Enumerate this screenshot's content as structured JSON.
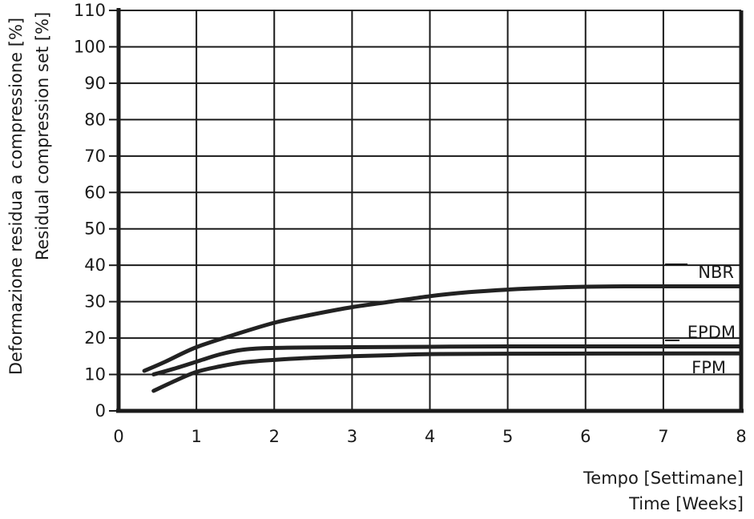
{
  "chart_data": {
    "type": "line",
    "ylabel_lines": [
      "Deformazione residua a compressione [%]",
      "Residual compression set [%]"
    ],
    "xlabel_lines": [
      "Tempo [Settimane]",
      "Time [Weeks]"
    ],
    "xlim": [
      0,
      8
    ],
    "ylim": [
      0,
      110
    ],
    "x_ticks": [
      "0",
      "1",
      "2",
      "3",
      "4",
      "5",
      "6",
      "7",
      "8"
    ],
    "y_ticks": [
      "0",
      "10",
      "20",
      "30",
      "40",
      "50",
      "60",
      "70",
      "80",
      "90",
      "100",
      "110"
    ],
    "grid": true,
    "series": [
      {
        "name": "NBR",
        "points": [
          [
            0.33,
            11
          ],
          [
            0.6,
            13.5
          ],
          [
            1.0,
            17.5
          ],
          [
            1.5,
            21
          ],
          [
            2.0,
            24.2
          ],
          [
            2.5,
            26.5
          ],
          [
            3.0,
            28.5
          ],
          [
            3.5,
            30.0
          ],
          [
            4.0,
            31.5
          ],
          [
            4.5,
            32.6
          ],
          [
            5.0,
            33.3
          ],
          [
            5.5,
            33.8
          ],
          [
            6.0,
            34.1
          ],
          [
            6.5,
            34.2
          ],
          [
            7.0,
            34.2
          ],
          [
            8.0,
            34.2
          ]
        ]
      },
      {
        "name": "EPDM",
        "points": [
          [
            0.45,
            10
          ],
          [
            0.7,
            11.5
          ],
          [
            1.0,
            13.5
          ],
          [
            1.3,
            15.5
          ],
          [
            1.6,
            16.8
          ],
          [
            2.0,
            17.3
          ],
          [
            3.0,
            17.5
          ],
          [
            4.0,
            17.6
          ],
          [
            5.0,
            17.7
          ],
          [
            8.0,
            17.7
          ]
        ]
      },
      {
        "name": "FPM",
        "points": [
          [
            0.45,
            5.5
          ],
          [
            0.7,
            8.0
          ],
          [
            1.0,
            10.7
          ],
          [
            1.3,
            12.2
          ],
          [
            1.6,
            13.3
          ],
          [
            2.0,
            14.0
          ],
          [
            2.5,
            14.6
          ],
          [
            3.0,
            15.0
          ],
          [
            3.5,
            15.3
          ],
          [
            4.0,
            15.6
          ],
          [
            5.0,
            15.7
          ],
          [
            8.0,
            15.8
          ]
        ]
      }
    ]
  }
}
